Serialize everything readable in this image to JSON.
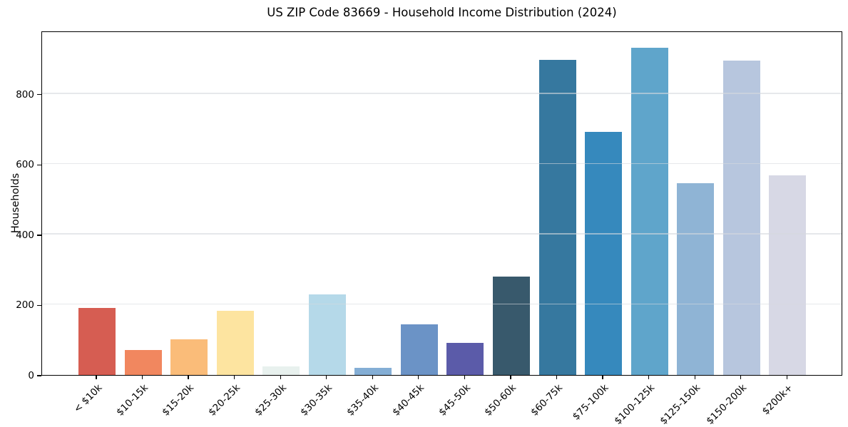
{
  "chart_data": {
    "type": "bar",
    "title": "US ZIP Code 83669 - Household Income Distribution (2024)",
    "xlabel": "",
    "ylabel": "Households",
    "categories": [
      "< $10k",
      "$10-15k",
      "$15-20k",
      "$20-25k",
      "$25-30k",
      "$30-35k",
      "$35-40k",
      "$40-45k",
      "$45-50k",
      "$50-60k",
      "$60-75k",
      "$75-100k",
      "$100-125k",
      "$125-150k",
      "$150-200k",
      "$200k+"
    ],
    "values": [
      190,
      71,
      101,
      183,
      25,
      230,
      21,
      145,
      91,
      280,
      897,
      692,
      931,
      545,
      895,
      569
    ],
    "bar_colors": [
      "#d65d52",
      "#f1875f",
      "#fabc79",
      "#fde4a0",
      "#e8f1ee",
      "#b5d9e9",
      "#84aed5",
      "#6b93c6",
      "#5b5ba9",
      "#38596c",
      "#36789f",
      "#3689bd",
      "#5fa5cb",
      "#8fb4d5",
      "#b7c6de",
      "#d7d8e5"
    ],
    "ylim": [
      0,
      980
    ],
    "yticks": [
      0,
      200,
      400,
      600,
      800
    ],
    "grid": "horizontal",
    "legend": "none",
    "x_tick_rotation": 45
  },
  "colors": {
    "background": "#ffffff",
    "axis": "#000000",
    "gridline": "#e8e8e8",
    "text": "#000000"
  }
}
